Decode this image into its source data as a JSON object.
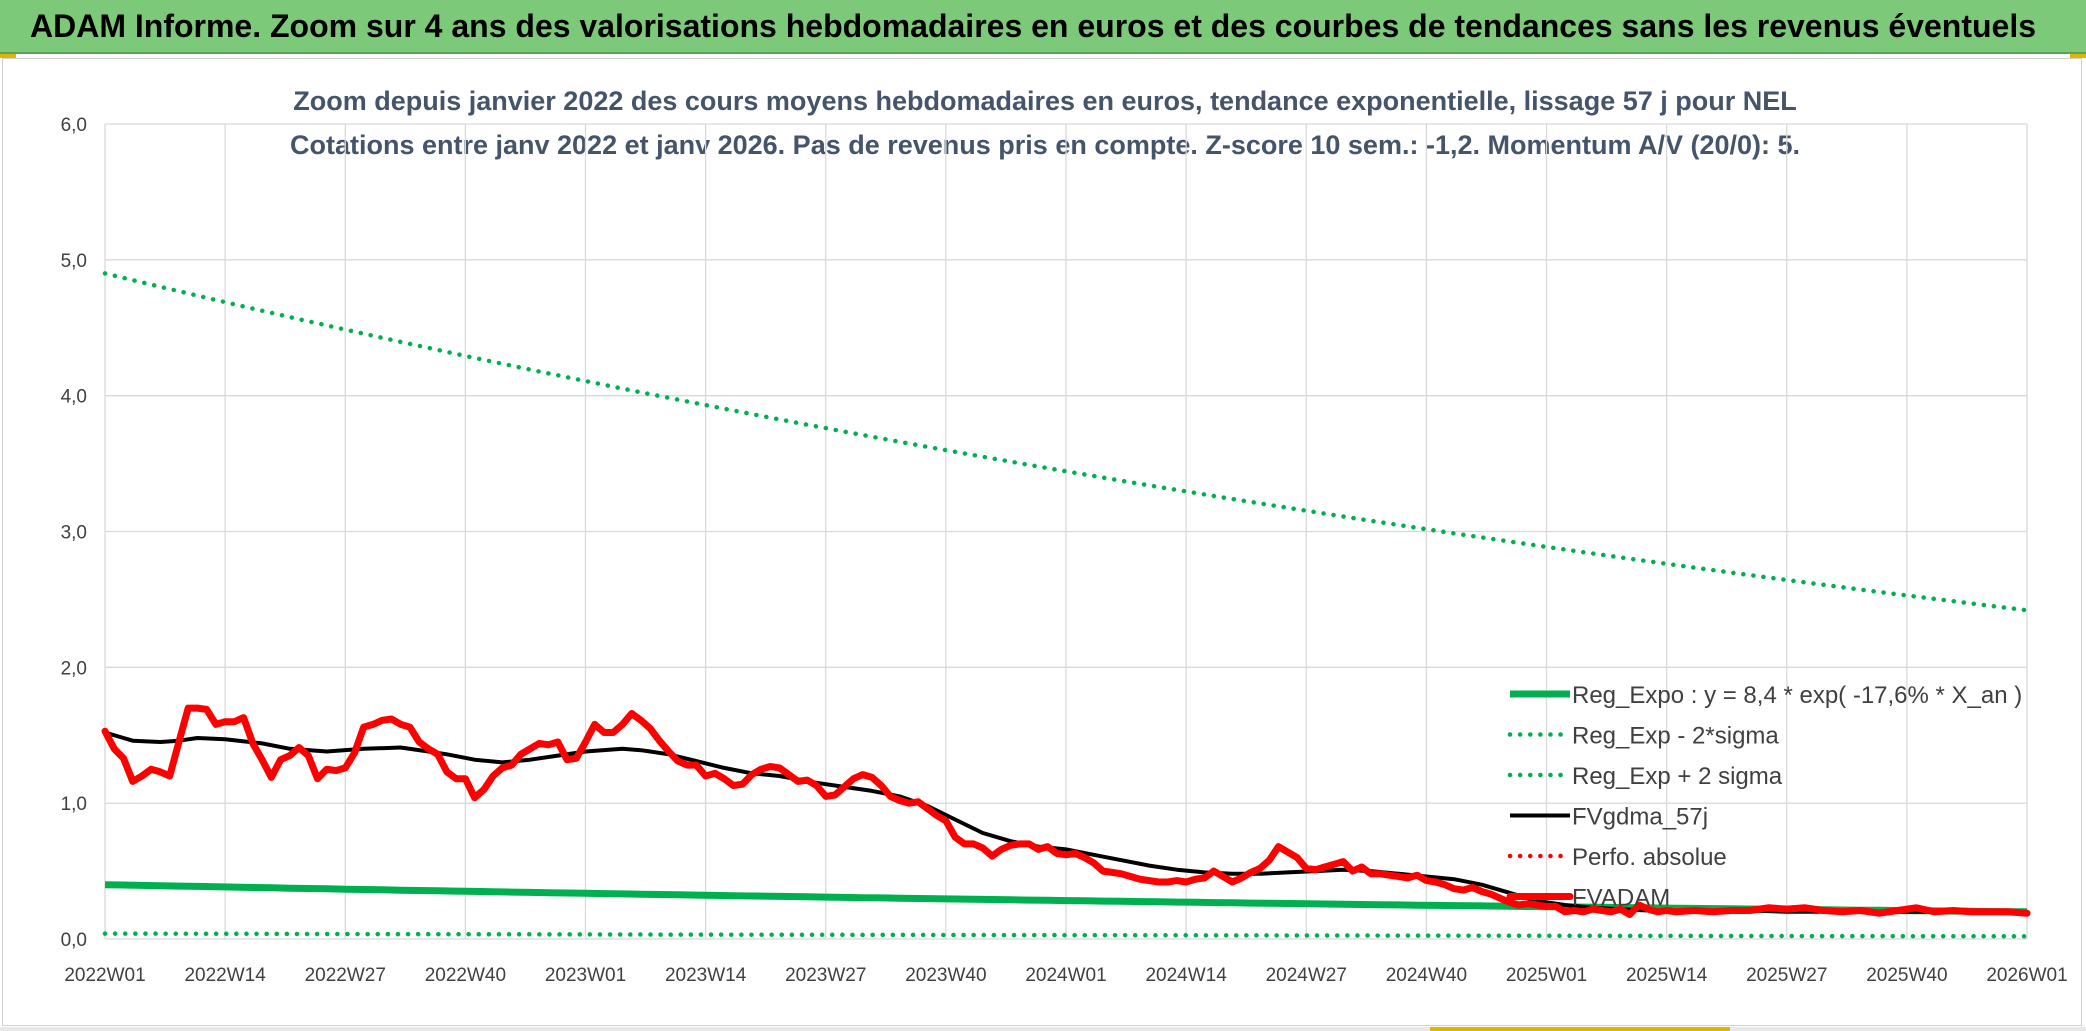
{
  "banner": {
    "title": "ADAM Informe. Zoom sur 4 ans des valorisations hebdomadaires en euros et des courbes de tendances sans les revenus éventuels"
  },
  "colors": {
    "banner": "#7dc97a",
    "trend_green": "#00b050",
    "smooth_black": "#000000",
    "price_red": "#ff0000",
    "grid": "#d9d9d9",
    "title": "#44546a"
  },
  "chart_data": {
    "type": "line",
    "title": "Zoom depuis janvier 2022 des cours moyens hebdomadaires en euros, tendance exponentielle, lissage 57 j pour NEL",
    "subtitle": "Cotations entre janv 2022 et janv 2026. Pas de revenus pris en compte. Z-score 10 sem.: -1,2. Momentum A/V (20/0): 5.",
    "ylim": [
      0,
      6
    ],
    "yticks": [
      "0,0",
      "1,0",
      "2,0",
      "3,0",
      "4,0",
      "5,0",
      "6,0"
    ],
    "xticks": [
      "2022W01",
      "2022W14",
      "2022W27",
      "2022W40",
      "2023W01",
      "2023W14",
      "2023W27",
      "2023W40",
      "2024W01",
      "2024W14",
      "2024W27",
      "2024W40",
      "2025W01",
      "2025W14",
      "2025W27",
      "2025W40",
      "2026W01"
    ],
    "legend_position": "bottom-right",
    "grid": true,
    "series": [
      {
        "name": "Reg_Expo : y = 8,4 * exp( -17,6% *  X_an )",
        "style": "solid-thick",
        "color": "#00b050",
        "values": [
          [
            0,
            0.4
          ],
          [
            208,
            0.2
          ]
        ]
      },
      {
        "name": "Reg_Exp - 2*sigma",
        "style": "dotted",
        "color": "#00b050",
        "values": [
          [
            0,
            0.04
          ],
          [
            208,
            0.02
          ]
        ]
      },
      {
        "name": "Reg_Exp + 2 sigma",
        "style": "dotted",
        "color": "#00b050",
        "values": [
          [
            0,
            4.9
          ],
          [
            208,
            2.42
          ]
        ]
      },
      {
        "name": "FVgdma_57j",
        "style": "solid",
        "color": "#000000",
        "values": [
          [
            0,
            1.52
          ],
          [
            3,
            1.46
          ],
          [
            6,
            1.45
          ],
          [
            8,
            1.46
          ],
          [
            10,
            1.48
          ],
          [
            13,
            1.47
          ],
          [
            17,
            1.44
          ],
          [
            20,
            1.4
          ],
          [
            24,
            1.38
          ],
          [
            28,
            1.4
          ],
          [
            32,
            1.41
          ],
          [
            35,
            1.38
          ],
          [
            37,
            1.36
          ],
          [
            40,
            1.32
          ],
          [
            43,
            1.3
          ],
          [
            46,
            1.32
          ],
          [
            49,
            1.35
          ],
          [
            52,
            1.38
          ],
          [
            56,
            1.4
          ],
          [
            58,
            1.39
          ],
          [
            59,
            1.38
          ],
          [
            61,
            1.36
          ],
          [
            64,
            1.31
          ],
          [
            67,
            1.26
          ],
          [
            70,
            1.22
          ],
          [
            73,
            1.2
          ],
          [
            77,
            1.15
          ],
          [
            80,
            1.12
          ],
          [
            83,
            1.09
          ],
          [
            86,
            1.05
          ],
          [
            89,
            0.98
          ],
          [
            92,
            0.88
          ],
          [
            95,
            0.78
          ],
          [
            98,
            0.72
          ],
          [
            101,
            0.68
          ],
          [
            104,
            0.66
          ],
          [
            107,
            0.62
          ],
          [
            110,
            0.58
          ],
          [
            113,
            0.54
          ],
          [
            116,
            0.51
          ],
          [
            119,
            0.49
          ],
          [
            122,
            0.48
          ],
          [
            125,
            0.48
          ],
          [
            128,
            0.49
          ],
          [
            131,
            0.5
          ],
          [
            134,
            0.51
          ],
          [
            137,
            0.5
          ],
          [
            140,
            0.48
          ],
          [
            143,
            0.46
          ],
          [
            146,
            0.44
          ],
          [
            149,
            0.4
          ],
          [
            152,
            0.34
          ],
          [
            155,
            0.28
          ],
          [
            158,
            0.25
          ],
          [
            161,
            0.23
          ],
          [
            164,
            0.22
          ],
          [
            167,
            0.21
          ],
          [
            170,
            0.21
          ],
          [
            174,
            0.21
          ],
          [
            178,
            0.21
          ],
          [
            182,
            0.2
          ],
          [
            186,
            0.2
          ],
          [
            190,
            0.2
          ],
          [
            194,
            0.2
          ],
          [
            198,
            0.2
          ],
          [
            202,
            0.2
          ],
          [
            208,
            0.19
          ]
        ]
      },
      {
        "name": "Perfo. absolue",
        "style": "dotted",
        "color": "#ff0000",
        "values": []
      },
      {
        "name": "FVADAM",
        "style": "solid-thick",
        "color": "#ff0000",
        "values": [
          [
            0,
            1.53
          ],
          [
            1,
            1.4
          ],
          [
            2,
            1.33
          ],
          [
            3,
            1.16
          ],
          [
            4,
            1.2
          ],
          [
            5,
            1.25
          ],
          [
            6,
            1.23
          ],
          [
            7,
            1.2
          ],
          [
            8,
            1.45
          ],
          [
            9,
            1.7
          ],
          [
            10,
            1.7
          ],
          [
            11,
            1.69
          ],
          [
            12,
            1.58
          ],
          [
            13,
            1.6
          ],
          [
            14,
            1.6
          ],
          [
            15,
            1.63
          ],
          [
            16,
            1.44
          ],
          [
            17,
            1.32
          ],
          [
            18,
            1.19
          ],
          [
            19,
            1.32
          ],
          [
            20,
            1.35
          ],
          [
            21,
            1.41
          ],
          [
            22,
            1.35
          ],
          [
            23,
            1.18
          ],
          [
            24,
            1.25
          ],
          [
            25,
            1.24
          ],
          [
            26,
            1.26
          ],
          [
            27,
            1.37
          ],
          [
            28,
            1.56
          ],
          [
            29,
            1.58
          ],
          [
            30,
            1.61
          ],
          [
            31,
            1.62
          ],
          [
            32,
            1.58
          ],
          [
            33,
            1.56
          ],
          [
            34,
            1.45
          ],
          [
            35,
            1.4
          ],
          [
            36,
            1.36
          ],
          [
            37,
            1.23
          ],
          [
            38,
            1.18
          ],
          [
            39,
            1.18
          ],
          [
            40,
            1.04
          ],
          [
            41,
            1.1
          ],
          [
            42,
            1.2
          ],
          [
            43,
            1.26
          ],
          [
            44,
            1.28
          ],
          [
            45,
            1.36
          ],
          [
            46,
            1.4
          ],
          [
            47,
            1.44
          ],
          [
            48,
            1.43
          ],
          [
            49,
            1.45
          ],
          [
            50,
            1.32
          ],
          [
            51,
            1.33
          ],
          [
            52,
            1.45
          ],
          [
            53,
            1.58
          ],
          [
            54,
            1.52
          ],
          [
            55,
            1.52
          ],
          [
            56,
            1.58
          ],
          [
            57,
            1.66
          ],
          [
            58,
            1.61
          ],
          [
            59,
            1.55
          ],
          [
            60,
            1.46
          ],
          [
            61,
            1.38
          ],
          [
            62,
            1.31
          ],
          [
            63,
            1.28
          ],
          [
            64,
            1.28
          ],
          [
            65,
            1.2
          ],
          [
            66,
            1.22
          ],
          [
            67,
            1.18
          ],
          [
            68,
            1.13
          ],
          [
            69,
            1.14
          ],
          [
            70,
            1.21
          ],
          [
            71,
            1.25
          ],
          [
            72,
            1.27
          ],
          [
            73,
            1.26
          ],
          [
            74,
            1.21
          ],
          [
            75,
            1.16
          ],
          [
            76,
            1.17
          ],
          [
            77,
            1.13
          ],
          [
            78,
            1.05
          ],
          [
            79,
            1.06
          ],
          [
            80,
            1.12
          ],
          [
            81,
            1.18
          ],
          [
            82,
            1.21
          ],
          [
            83,
            1.19
          ],
          [
            84,
            1.13
          ],
          [
            85,
            1.05
          ],
          [
            86,
            1.02
          ],
          [
            87,
            1.0
          ],
          [
            88,
            1.01
          ],
          [
            89,
            0.96
          ],
          [
            90,
            0.91
          ],
          [
            91,
            0.87
          ],
          [
            92,
            0.75
          ],
          [
            93,
            0.7
          ],
          [
            94,
            0.7
          ],
          [
            95,
            0.67
          ],
          [
            96,
            0.61
          ],
          [
            97,
            0.66
          ],
          [
            98,
            0.69
          ],
          [
            99,
            0.7
          ],
          [
            100,
            0.7
          ],
          [
            101,
            0.66
          ],
          [
            102,
            0.68
          ],
          [
            103,
            0.63
          ],
          [
            104,
            0.62
          ],
          [
            105,
            0.63
          ],
          [
            106,
            0.6
          ],
          [
            107,
            0.56
          ],
          [
            108,
            0.5
          ],
          [
            109,
            0.49
          ],
          [
            110,
            0.48
          ],
          [
            111,
            0.46
          ],
          [
            112,
            0.44
          ],
          [
            113,
            0.43
          ],
          [
            114,
            0.42
          ],
          [
            115,
            0.42
          ],
          [
            116,
            0.43
          ],
          [
            117,
            0.42
          ],
          [
            118,
            0.44
          ],
          [
            119,
            0.45
          ],
          [
            120,
            0.5
          ],
          [
            121,
            0.46
          ],
          [
            122,
            0.42
          ],
          [
            123,
            0.45
          ],
          [
            124,
            0.49
          ],
          [
            125,
            0.52
          ],
          [
            126,
            0.58
          ],
          [
            127,
            0.68
          ],
          [
            128,
            0.64
          ],
          [
            129,
            0.6
          ],
          [
            130,
            0.52
          ],
          [
            131,
            0.51
          ],
          [
            132,
            0.53
          ],
          [
            133,
            0.55
          ],
          [
            134,
            0.57
          ],
          [
            135,
            0.5
          ],
          [
            136,
            0.53
          ],
          [
            137,
            0.48
          ],
          [
            138,
            0.48
          ],
          [
            139,
            0.47
          ],
          [
            140,
            0.46
          ],
          [
            141,
            0.45
          ],
          [
            142,
            0.47
          ],
          [
            143,
            0.43
          ],
          [
            144,
            0.42
          ],
          [
            145,
            0.4
          ],
          [
            146,
            0.37
          ],
          [
            147,
            0.36
          ],
          [
            148,
            0.38
          ],
          [
            149,
            0.35
          ],
          [
            150,
            0.33
          ],
          [
            151,
            0.3
          ],
          [
            152,
            0.27
          ],
          [
            153,
            0.25
          ],
          [
            154,
            0.26
          ],
          [
            155,
            0.25
          ],
          [
            156,
            0.24
          ],
          [
            157,
            0.24
          ],
          [
            158,
            0.2
          ],
          [
            159,
            0.21
          ],
          [
            160,
            0.2
          ],
          [
            161,
            0.22
          ],
          [
            162,
            0.21
          ],
          [
            163,
            0.2
          ],
          [
            164,
            0.22
          ],
          [
            165,
            0.18
          ],
          [
            166,
            0.25
          ],
          [
            167,
            0.22
          ],
          [
            168,
            0.2
          ],
          [
            169,
            0.21
          ],
          [
            170,
            0.2
          ],
          [
            172,
            0.21
          ],
          [
            174,
            0.2
          ],
          [
            176,
            0.21
          ],
          [
            178,
            0.21
          ],
          [
            180,
            0.23
          ],
          [
            182,
            0.22
          ],
          [
            184,
            0.23
          ],
          [
            186,
            0.21
          ],
          [
            188,
            0.2
          ],
          [
            190,
            0.21
          ],
          [
            192,
            0.19
          ],
          [
            194,
            0.21
          ],
          [
            196,
            0.23
          ],
          [
            198,
            0.2
          ],
          [
            200,
            0.21
          ],
          [
            202,
            0.2
          ],
          [
            204,
            0.2
          ],
          [
            206,
            0.2
          ],
          [
            208,
            0.19
          ]
        ]
      }
    ]
  }
}
